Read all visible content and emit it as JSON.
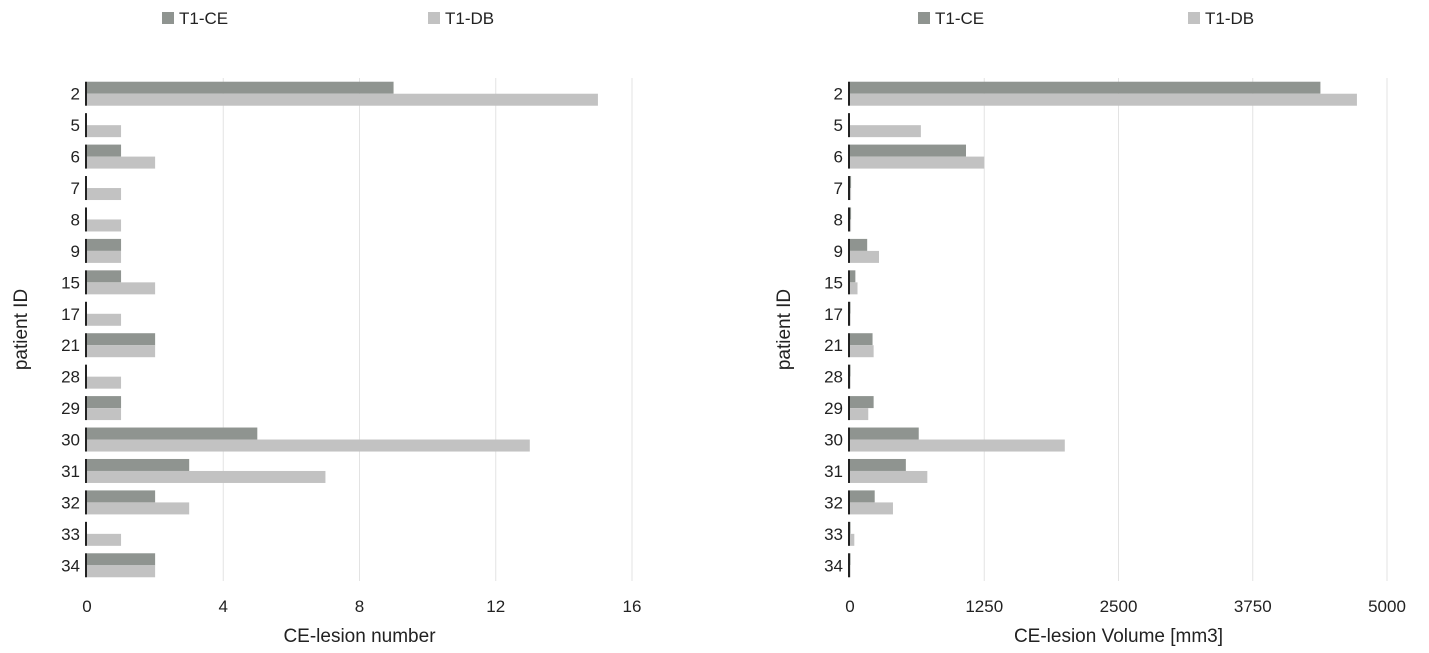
{
  "chart_data": [
    {
      "type": "bar",
      "orientation": "horizontal",
      "categories": [
        "2",
        "5",
        "6",
        "7",
        "8",
        "9",
        "15",
        "17",
        "21",
        "28",
        "29",
        "30",
        "31",
        "32",
        "33",
        "34"
      ],
      "series": [
        {
          "name": "T1-CE",
          "color": "#8f9490",
          "values": [
            9,
            0,
            1,
            0,
            0,
            1,
            1,
            0,
            2,
            0,
            1,
            5,
            3,
            2,
            0,
            2
          ]
        },
        {
          "name": "T1-DB",
          "color": "#c2c2c2",
          "values": [
            15,
            1,
            2,
            1,
            1,
            1,
            2,
            1,
            2,
            1,
            1,
            13,
            7,
            3,
            1,
            2
          ]
        }
      ],
      "xlabel": "CE-lesion number",
      "ylabel": "patient ID",
      "xlim": [
        0,
        16
      ],
      "xticks": [
        "0",
        "4",
        "8",
        "12",
        "16"
      ],
      "xtick_values": [
        0,
        4,
        8,
        12,
        16
      ],
      "grid": true,
      "legend_position": "top"
    },
    {
      "type": "bar",
      "orientation": "horizontal",
      "categories": [
        "2",
        "5",
        "6",
        "7",
        "8",
        "9",
        "15",
        "17",
        "21",
        "28",
        "29",
        "30",
        "31",
        "32",
        "33",
        "34"
      ],
      "series": [
        {
          "name": "T1-CE",
          "color": "#8f9490",
          "values": [
            4380,
            0,
            1080,
            10,
            10,
            160,
            50,
            5,
            210,
            5,
            220,
            640,
            520,
            230,
            5,
            5
          ]
        },
        {
          "name": "T1-DB",
          "color": "#c2c2c2",
          "values": [
            4720,
            660,
            1250,
            10,
            10,
            270,
            70,
            5,
            220,
            5,
            170,
            2000,
            720,
            400,
            40,
            5
          ]
        }
      ],
      "xlabel": "CE-lesion Volume [mm3]",
      "ylabel": "patient ID",
      "xlim": [
        0,
        5000
      ],
      "xticks": [
        "0",
        "1250",
        "2500",
        "3750",
        "5000"
      ],
      "xtick_values": [
        0,
        1250,
        2500,
        3750,
        5000
      ],
      "grid": true,
      "legend_position": "top"
    }
  ]
}
